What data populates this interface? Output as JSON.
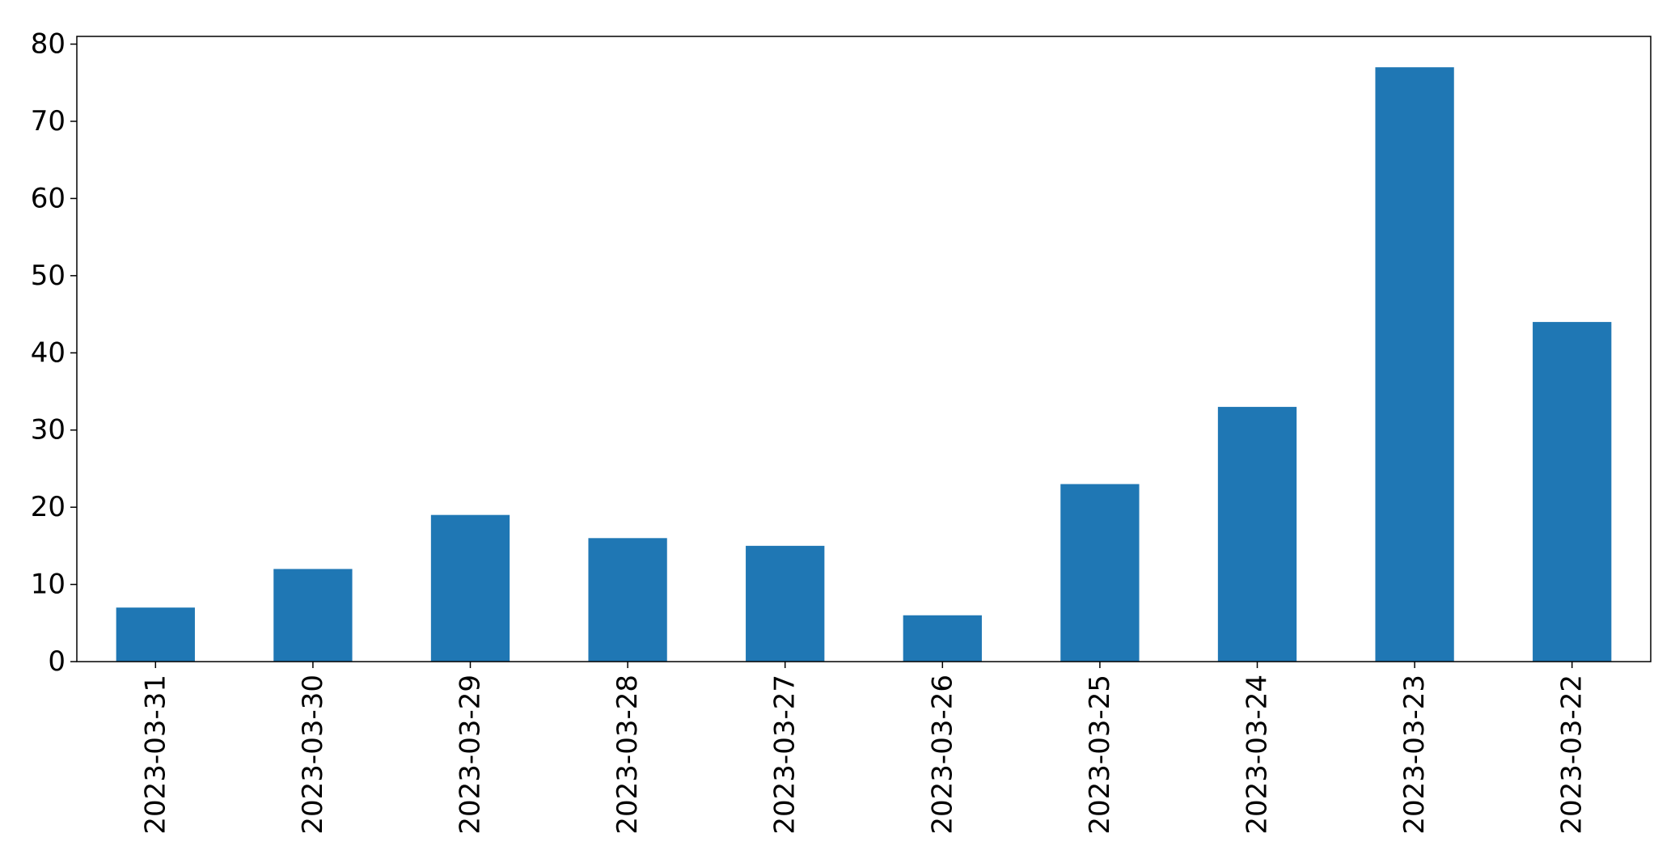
{
  "chart_data": {
    "type": "bar",
    "title": "",
    "xlabel": "",
    "ylabel": "",
    "categories": [
      "2023-03-31",
      "2023-03-30",
      "2023-03-29",
      "2023-03-28",
      "2023-03-27",
      "2023-03-26",
      "2023-03-25",
      "2023-03-24",
      "2023-03-23",
      "2023-03-22"
    ],
    "values": [
      7,
      12,
      19,
      16,
      15,
      6,
      23,
      33,
      77,
      44
    ],
    "ylim": [
      0,
      81
    ],
    "yticks": [
      "0",
      "10",
      "20",
      "30",
      "40",
      "50",
      "60",
      "70",
      "80"
    ],
    "bar_color": "#1f77b4",
    "grid": false,
    "legend": "none"
  }
}
